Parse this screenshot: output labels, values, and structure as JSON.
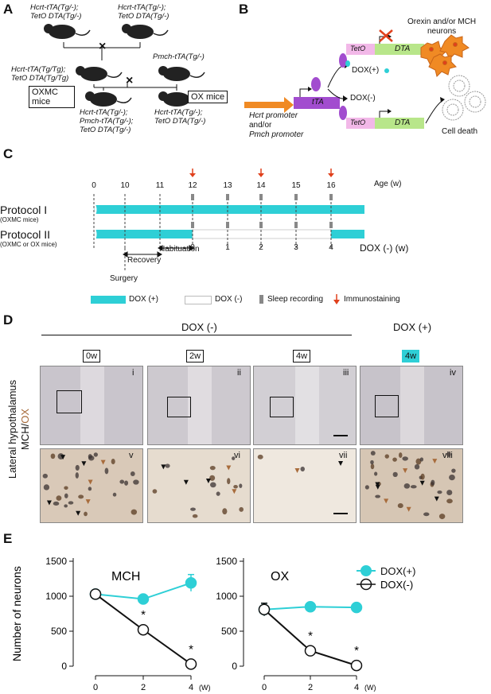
{
  "panelA": {
    "letter": "A",
    "mouse1": [
      "Hcrt-tTA(Tg/-);",
      "TetO DTA(Tg/-)"
    ],
    "mouse2": [
      "Hcrt-tTA(Tg/-);",
      "TetO DTA(Tg/-)"
    ],
    "mouse3": [
      "Hcrt-tTA(Tg/Tg);",
      "TetO DTA(Tg/Tg)"
    ],
    "mouse4": [
      "Pmch-tTA(Tg/-)"
    ],
    "oxmc_box": "OXMC mice",
    "ox_box": "OX mice",
    "offspring1": [
      "Hcrt-tTA(Tg/-);",
      "Pmch-tTA(Tg/-);",
      "TetO DTA(Tg/-)"
    ],
    "offspring2": [
      "Hcrt-tTA(Tg/-);",
      "TetO DTA(Tg/-)"
    ],
    "cross": "×"
  },
  "panelB": {
    "letter": "B",
    "teto": "TetO",
    "dta": "DTA",
    "tta": "tTA",
    "promoter": [
      "Hcrt promoter",
      "and/or",
      "Pmch promoter"
    ],
    "dox_plus": "DOX(+)",
    "dox_minus": "DOX(-)",
    "neurons_label": [
      "Orexin and/or MCH",
      "neurons"
    ],
    "cell_death": "Cell death"
  },
  "panelC": {
    "letter": "C",
    "age_label": "Age (w)",
    "age_ticks": [
      "0",
      "10",
      "11",
      "12",
      "13",
      "14",
      "15",
      "16"
    ],
    "protocol1": "Protocol I",
    "protocol1_sub": "(OXMC mice)",
    "protocol2": "Protocol II",
    "protocol2_sub": "(OXMC or OX mice)",
    "dox_ticks": [
      "0",
      "1",
      "2",
      "3",
      "4"
    ],
    "dox_label": "DOX (-) (w)",
    "recovery": "Recovery",
    "habituation": "Habituation",
    "surgery": "Surgery",
    "legend": {
      "dox_plus": "DOX (+)",
      "dox_minus": "DOX (-)",
      "sleep": "Sleep recording",
      "immuno": "Immunostaining"
    },
    "colors": {
      "dox_plus": "#2ecfd6",
      "immuno": "#e0401c",
      "sleep": "#888888"
    }
  },
  "panelD": {
    "letter": "D",
    "dox_minus_header": "DOX (-)",
    "dox_plus_header": "DOX (+)",
    "col_labels": [
      "0w",
      "2w",
      "4w",
      "4w"
    ],
    "side_label_1": "Lateral hypothalamus",
    "side_label_2a": "MCH/",
    "side_label_2b": "OX",
    "top_romans": [
      "i",
      "ii",
      "iii",
      "iv"
    ],
    "bottom_romans": [
      "v",
      "vi",
      "vii",
      "viii"
    ]
  },
  "panelE": {
    "letter": "E",
    "ylabel": "Number of neurons",
    "mch_title": "MCH",
    "ox_title": "OX",
    "legend_plus": "DOX(+)",
    "legend_minus": "DOX(-)",
    "x_unit": "(W)",
    "star": "*"
  },
  "chart_data": [
    {
      "type": "line",
      "title": "MCH",
      "xlabel": "(W)",
      "ylabel": "Number of neurons",
      "x": [
        0,
        2,
        4
      ],
      "ylim": [
        0,
        1500
      ],
      "yticks": [
        0,
        500,
        1000,
        1500
      ],
      "series": [
        {
          "name": "DOX(+)",
          "values": [
            1030,
            960,
            1190
          ],
          "errors": [
            60,
            30,
            120
          ]
        },
        {
          "name": "DOX(-)",
          "values": [
            1030,
            520,
            30
          ],
          "errors": [
            60,
            30,
            5
          ]
        }
      ]
    },
    {
      "type": "line",
      "title": "OX",
      "xlabel": "(W)",
      "ylabel": "",
      "x": [
        0,
        2,
        4
      ],
      "ylim": [
        0,
        1500
      ],
      "yticks": [
        0,
        500,
        1000,
        1500
      ],
      "series": [
        {
          "name": "DOX(+)",
          "values": [
            810,
            850,
            840
          ],
          "errors": [
            90,
            20,
            30
          ]
        },
        {
          "name": "DOX(-)",
          "values": [
            810,
            220,
            10
          ],
          "errors": [
            90,
            25,
            5
          ]
        }
      ]
    }
  ]
}
